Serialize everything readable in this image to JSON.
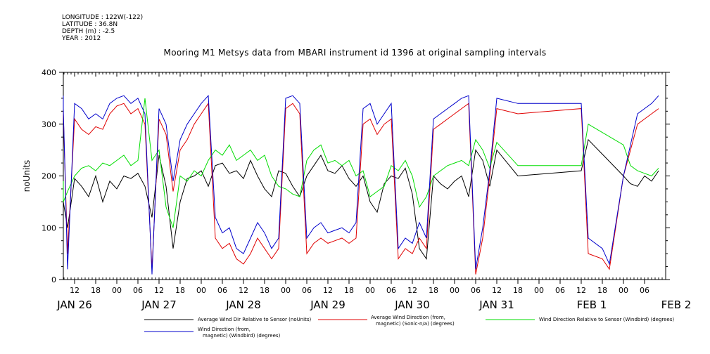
{
  "meta": {
    "longitude": "LONGITUDE : 122W(-122)",
    "latitude": "LATITUDE : 36.8N",
    "depth": "DEPTH (m) : -2.5",
    "year": "YEAR : 2012"
  },
  "chart_data": {
    "type": "line",
    "title": "Mooring M1 Metsys data from MBARI instrument id 1396 at original sampling intervals",
    "ylabel": "noUnits",
    "xlabel": "",
    "xlim_hours": [
      0,
      174
    ],
    "ylim": [
      0,
      400
    ],
    "y_ticks": [
      0,
      100,
      200,
      300,
      400
    ],
    "x_hour_ticks": [
      {
        "h": 6,
        "label": "12"
      },
      {
        "h": 12,
        "label": "18"
      },
      {
        "h": 18,
        "label": "00"
      },
      {
        "h": 24,
        "label": "06"
      },
      {
        "h": 30,
        "label": "12"
      },
      {
        "h": 36,
        "label": "18"
      },
      {
        "h": 42,
        "label": "00"
      },
      {
        "h": 48,
        "label": "06"
      },
      {
        "h": 54,
        "label": "12"
      },
      {
        "h": 60,
        "label": "18"
      },
      {
        "h": 66,
        "label": "00"
      },
      {
        "h": 72,
        "label": "06"
      },
      {
        "h": 78,
        "label": "12"
      },
      {
        "h": 84,
        "label": "18"
      },
      {
        "h": 90,
        "label": "00"
      },
      {
        "h": 96,
        "label": "06"
      },
      {
        "h": 102,
        "label": "12"
      },
      {
        "h": 108,
        "label": "18"
      },
      {
        "h": 114,
        "label": "00"
      },
      {
        "h": 120,
        "label": "06"
      },
      {
        "h": 126,
        "label": "12"
      },
      {
        "h": 132,
        "label": "18"
      },
      {
        "h": 138,
        "label": "00"
      },
      {
        "h": 144,
        "label": "06"
      },
      {
        "h": 150,
        "label": "12"
      },
      {
        "h": 156,
        "label": "18"
      },
      {
        "h": 162,
        "label": "00"
      },
      {
        "h": 168,
        "label": "06"
      }
    ],
    "x_day_labels": [
      {
        "h": 6,
        "label": "JAN 26"
      },
      {
        "h": 30,
        "label": "JAN 27"
      },
      {
        "h": 54,
        "label": "JAN 28"
      },
      {
        "h": 78,
        "label": "JAN 29"
      },
      {
        "h": 102,
        "label": "JAN 30"
      },
      {
        "h": 126,
        "label": "JAN 31"
      },
      {
        "h": 153,
        "label": "FEB  1"
      },
      {
        "h": 177,
        "label": "FEB  2"
      }
    ],
    "series": [
      {
        "name": "Average Wind Dir Relative to Sensor (noUnits)",
        "color": "#000000",
        "x": [
          0,
          2,
          4,
          6,
          8,
          10,
          12,
          14,
          16,
          18,
          20,
          22,
          24,
          26,
          28,
          30,
          32,
          34,
          36,
          38,
          40,
          42,
          44,
          46,
          48,
          50,
          52,
          54,
          56,
          58,
          60,
          62,
          64,
          66,
          68,
          70,
          72,
          74,
          76,
          78,
          80,
          82,
          84,
          86,
          88,
          90,
          92,
          94,
          96,
          98,
          100,
          102,
          104,
          106,
          108,
          110,
          112,
          114,
          116,
          118,
          120,
          122,
          124,
          126,
          132,
          150,
          152,
          162,
          164,
          166,
          168,
          170,
          172
        ],
        "y": [
          170,
          150,
          100,
          195,
          180,
          160,
          200,
          150,
          190,
          175,
          200,
          195,
          205,
          180,
          120,
          240,
          180,
          60,
          150,
          195,
          200,
          210,
          180,
          220,
          225,
          205,
          210,
          195,
          230,
          200,
          175,
          160,
          210,
          205,
          180,
          160,
          200,
          220,
          240,
          210,
          205,
          220,
          195,
          180,
          200,
          150,
          130,
          185,
          200,
          195,
          215,
          165,
          60,
          40,
          200,
          185,
          175,
          190,
          200,
          160,
          250,
          230,
          180,
          250,
          200,
          210,
          270,
          200,
          185,
          180,
          200,
          190,
          210
        ]
      },
      {
        "name": "Average Wind Direction (from, magnetic) (Sonic-n/a) (degrees)",
        "color": "#e00000",
        "x": [
          0,
          2,
          4,
          6,
          8,
          10,
          12,
          14,
          16,
          18,
          20,
          22,
          24,
          26,
          28,
          30,
          32,
          34,
          36,
          38,
          40,
          42,
          44,
          46,
          48,
          50,
          52,
          54,
          56,
          58,
          60,
          62,
          64,
          66,
          68,
          70,
          72,
          74,
          76,
          78,
          80,
          82,
          84,
          86,
          88,
          90,
          92,
          94,
          96,
          98,
          100,
          102,
          104,
          106,
          108,
          110,
          112,
          114,
          116,
          118,
          120,
          122,
          124,
          126,
          132,
          150,
          152,
          156,
          158,
          162,
          166,
          168,
          170,
          172
        ],
        "y": [
          340,
          320,
          50,
          310,
          290,
          280,
          295,
          290,
          320,
          335,
          340,
          320,
          330,
          300,
          20,
          310,
          280,
          170,
          250,
          270,
          300,
          320,
          340,
          80,
          60,
          70,
          40,
          30,
          50,
          80,
          60,
          40,
          60,
          330,
          340,
          320,
          50,
          70,
          80,
          70,
          75,
          80,
          70,
          80,
          300,
          310,
          280,
          300,
          310,
          40,
          60,
          50,
          80,
          60,
          290,
          300,
          310,
          320,
          330,
          340,
          10,
          80,
          200,
          330,
          320,
          330,
          50,
          40,
          20,
          200,
          300,
          310,
          320,
          330
        ]
      },
      {
        "name": "Wind Direction Relative to Sensor (Windbird) (degrees)",
        "color": "#00dd00",
        "x": [
          0,
          2,
          4,
          6,
          8,
          10,
          12,
          14,
          16,
          18,
          20,
          22,
          24,
          26,
          28,
          30,
          32,
          34,
          36,
          38,
          40,
          42,
          44,
          46,
          48,
          50,
          52,
          54,
          56,
          58,
          60,
          62,
          64,
          66,
          68,
          70,
          72,
          74,
          76,
          78,
          80,
          82,
          84,
          86,
          88,
          90,
          92,
          94,
          96,
          98,
          100,
          102,
          104,
          106,
          108,
          110,
          112,
          114,
          116,
          118,
          120,
          122,
          124,
          126,
          132,
          150,
          152,
          162,
          164,
          166,
          168,
          170,
          172
        ],
        "y": [
          190,
          150,
          170,
          200,
          215,
          220,
          210,
          225,
          220,
          230,
          240,
          220,
          230,
          350,
          230,
          250,
          140,
          100,
          200,
          190,
          210,
          200,
          230,
          250,
          240,
          260,
          230,
          240,
          250,
          230,
          240,
          200,
          180,
          175,
          165,
          160,
          230,
          250,
          260,
          225,
          230,
          220,
          230,
          200,
          210,
          160,
          170,
          180,
          220,
          210,
          230,
          200,
          140,
          160,
          200,
          210,
          220,
          225,
          230,
          220,
          270,
          250,
          215,
          265,
          220,
          220,
          300,
          260,
          220,
          210,
          205,
          200,
          215
        ]
      },
      {
        "name": "Wind Direction (from, magnetic) (Windbird) (degrees)",
        "color": "#0000cc",
        "x": [
          0,
          2,
          4,
          6,
          8,
          10,
          12,
          14,
          16,
          18,
          20,
          22,
          24,
          26,
          28,
          30,
          32,
          34,
          36,
          38,
          40,
          42,
          44,
          46,
          48,
          50,
          52,
          54,
          56,
          58,
          60,
          62,
          64,
          66,
          68,
          70,
          72,
          74,
          76,
          78,
          80,
          82,
          84,
          86,
          88,
          90,
          92,
          94,
          96,
          98,
          100,
          102,
          104,
          106,
          108,
          110,
          112,
          114,
          116,
          118,
          120,
          122,
          124,
          126,
          132,
          150,
          152,
          156,
          158,
          162,
          166,
          168,
          170,
          172
        ],
        "y": [
          355,
          330,
          20,
          340,
          330,
          310,
          320,
          310,
          340,
          350,
          355,
          340,
          350,
          320,
          10,
          330,
          300,
          190,
          270,
          300,
          320,
          340,
          355,
          120,
          90,
          100,
          60,
          50,
          80,
          110,
          90,
          60,
          80,
          350,
          355,
          340,
          80,
          100,
          110,
          90,
          95,
          100,
          90,
          110,
          330,
          340,
          300,
          320,
          340,
          60,
          80,
          70,
          110,
          80,
          310,
          320,
          330,
          340,
          350,
          355,
          20,
          100,
          210,
          350,
          340,
          340,
          80,
          60,
          30,
          200,
          320,
          330,
          340,
          355
        ]
      }
    ],
    "legend": {
      "placement": "bottom",
      "items": [
        {
          "series": 0,
          "lines": [
            "Average Wind Dir Relative to Sensor (noUnits)"
          ]
        },
        {
          "series": 1,
          "lines": [
            "Average Wind Direction (from,",
            "magnetic) (Sonic-n/a) (degrees)"
          ]
        },
        {
          "series": 2,
          "lines": [
            "Wind Direction Relative to Sensor (Windbird) (degrees)"
          ]
        },
        {
          "series": 3,
          "lines": [
            "Wind Direction (from,",
            "magnetic) (Windbird) (degrees)"
          ]
        }
      ]
    },
    "grid": false
  }
}
